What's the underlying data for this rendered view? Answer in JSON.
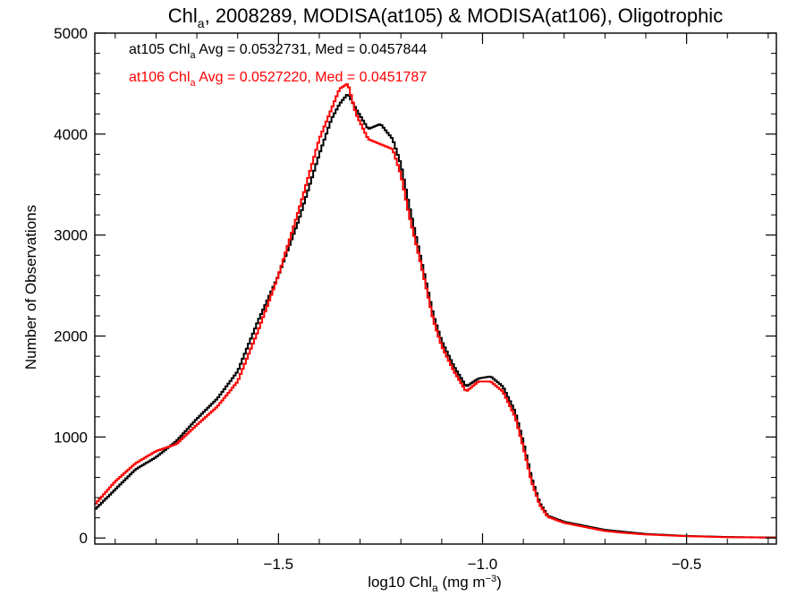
{
  "chart_data": {
    "type": "line",
    "title": {
      "prefix": "Chl",
      "sub": "a",
      "suffix": ", 2008289, MODISA(at105) & MODISA(at106), Oligotrophic"
    },
    "xlabel": {
      "prefix": "log10 Chl",
      "sub": "a",
      "mid": " (mg m",
      "sup": "−3",
      "suffix": ")"
    },
    "ylabel": "Number of Observations",
    "xlim": [
      -1.95,
      -0.28
    ],
    "ylim": [
      -60,
      5000
    ],
    "x_ticks": [
      {
        "value": -1.5,
        "label": "−1.5"
      },
      {
        "value": -1.0,
        "label": "−1.0"
      },
      {
        "value": -0.5,
        "label": "−0.5"
      }
    ],
    "x_minor_step": 0.1,
    "y_ticks": [
      {
        "value": 0,
        "label": "0"
      },
      {
        "value": 1000,
        "label": "1000"
      },
      {
        "value": 2000,
        "label": "2000"
      },
      {
        "value": 3000,
        "label": "3000"
      },
      {
        "value": 4000,
        "label": "4000"
      },
      {
        "value": 5000,
        "label": "5000"
      }
    ],
    "y_minor_step": 200,
    "grid": false,
    "step_width": 0.005,
    "legend": [
      {
        "series": "at105",
        "prefix": "at105 Chl",
        "sub": "a",
        "suffix": " Avg = 0.0532731, Med = 0.0457844",
        "color": "#000000"
      },
      {
        "series": "at106",
        "prefix": "at106 Chl",
        "sub": "a",
        "suffix": " Avg = 0.0527220, Med = 0.0451787",
        "color": "#ff0000"
      }
    ],
    "series": [
      {
        "name": "at105",
        "color": "#000000",
        "points": [
          [
            -1.95,
            280
          ],
          [
            -1.9,
            480
          ],
          [
            -1.85,
            680
          ],
          [
            -1.8,
            800
          ],
          [
            -1.75,
            960
          ],
          [
            -1.7,
            1180
          ],
          [
            -1.65,
            1380
          ],
          [
            -1.6,
            1650
          ],
          [
            -1.55,
            2150
          ],
          [
            -1.5,
            2600
          ],
          [
            -1.45,
            3150
          ],
          [
            -1.4,
            3800
          ],
          [
            -1.37,
            4150
          ],
          [
            -1.35,
            4300
          ],
          [
            -1.33,
            4400
          ],
          [
            -1.31,
            4250
          ],
          [
            -1.28,
            4050
          ],
          [
            -1.25,
            4100
          ],
          [
            -1.22,
            3950
          ],
          [
            -1.2,
            3700
          ],
          [
            -1.18,
            3300
          ],
          [
            -1.15,
            2750
          ],
          [
            -1.12,
            2200
          ],
          [
            -1.1,
            1950
          ],
          [
            -1.07,
            1700
          ],
          [
            -1.04,
            1500
          ],
          [
            -1.01,
            1580
          ],
          [
            -0.98,
            1600
          ],
          [
            -0.95,
            1500
          ],
          [
            -0.92,
            1250
          ],
          [
            -0.9,
            950
          ],
          [
            -0.88,
            600
          ],
          [
            -0.86,
            350
          ],
          [
            -0.84,
            220
          ],
          [
            -0.8,
            160
          ],
          [
            -0.75,
            120
          ],
          [
            -0.7,
            80
          ],
          [
            -0.65,
            60
          ],
          [
            -0.6,
            40
          ],
          [
            -0.5,
            20
          ],
          [
            -0.4,
            10
          ],
          [
            -0.3,
            5
          ],
          [
            -0.28,
            5
          ]
        ]
      },
      {
        "name": "at106",
        "color": "#ff0000",
        "points": [
          [
            -1.95,
            330
          ],
          [
            -1.9,
            560
          ],
          [
            -1.85,
            740
          ],
          [
            -1.8,
            860
          ],
          [
            -1.75,
            930
          ],
          [
            -1.7,
            1120
          ],
          [
            -1.65,
            1300
          ],
          [
            -1.6,
            1550
          ],
          [
            -1.55,
            2050
          ],
          [
            -1.5,
            2600
          ],
          [
            -1.45,
            3250
          ],
          [
            -1.4,
            3950
          ],
          [
            -1.37,
            4250
          ],
          [
            -1.35,
            4450
          ],
          [
            -1.33,
            4500
          ],
          [
            -1.31,
            4200
          ],
          [
            -1.28,
            3950
          ],
          [
            -1.25,
            3900
          ],
          [
            -1.22,
            3850
          ],
          [
            -1.2,
            3600
          ],
          [
            -1.18,
            3200
          ],
          [
            -1.15,
            2700
          ],
          [
            -1.12,
            2150
          ],
          [
            -1.1,
            1900
          ],
          [
            -1.07,
            1650
          ],
          [
            -1.04,
            1450
          ],
          [
            -1.01,
            1550
          ],
          [
            -0.98,
            1550
          ],
          [
            -0.95,
            1450
          ],
          [
            -0.92,
            1200
          ],
          [
            -0.9,
            900
          ],
          [
            -0.88,
            560
          ],
          [
            -0.86,
            330
          ],
          [
            -0.84,
            210
          ],
          [
            -0.8,
            150
          ],
          [
            -0.75,
            110
          ],
          [
            -0.7,
            70
          ],
          [
            -0.65,
            50
          ],
          [
            -0.6,
            35
          ],
          [
            -0.5,
            18
          ],
          [
            -0.4,
            8
          ],
          [
            -0.3,
            4
          ],
          [
            -0.28,
            4
          ]
        ]
      }
    ]
  }
}
